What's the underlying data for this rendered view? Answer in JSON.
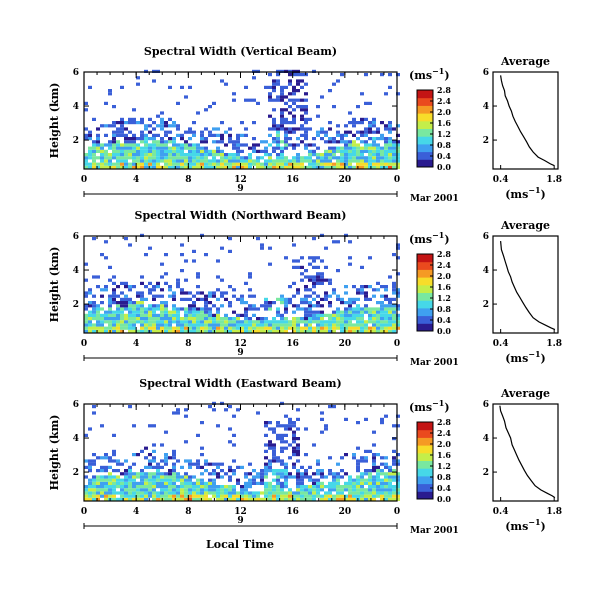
{
  "figure": {
    "bottom_xlabel": "Local Time",
    "colorscale": [
      "#2a1b8f",
      "#3a5fd8",
      "#3fa0f0",
      "#46d8e8",
      "#79e8a0",
      "#c4ee4a",
      "#f7dd2a",
      "#f59a24",
      "#ea4a1e",
      "#c41414"
    ]
  },
  "chart_data": [
    {
      "type": "heatmap",
      "title": "Spectral Width (Vertical Beam)",
      "ylabel": "Height (km)",
      "y_ticks": [
        "2",
        "4",
        "6"
      ],
      "x_ticks": [
        "0",
        "4",
        "8",
        "12",
        "16",
        "20",
        "0"
      ],
      "xlim": [
        0,
        24
      ],
      "ylim": [
        0.3,
        6.0
      ],
      "date_marker": "9",
      "date_label": "Mar 2001",
      "colorbar": {
        "unit": "(ms",
        "exponent": "−1",
        "unit_close": ")",
        "ticks": [
          "0.0",
          "0.4",
          "0.8",
          "1.2",
          "1.6",
          "2.0",
          "2.4",
          "2.8"
        ],
        "range": [
          0,
          2.8
        ]
      },
      "features": {
        "column_center_h": 15.5,
        "column_top_km": 6.0
      },
      "average": {
        "title": "Average",
        "xlabel": "(ms",
        "xlabel_exp": "−1",
        "xlabel_close": ")",
        "x_ticks": [
          "0.4",
          "1.8"
        ],
        "y_ticks": [
          "2",
          "4",
          "6"
        ],
        "xlim": [
          0.2,
          1.9
        ],
        "ylim": [
          0.3,
          6.0
        ],
        "profile": [
          [
            0.4,
            5.8
          ],
          [
            0.42,
            5.5
          ],
          [
            0.45,
            5.2
          ],
          [
            0.5,
            4.9
          ],
          [
            0.52,
            4.6
          ],
          [
            0.58,
            4.3
          ],
          [
            0.62,
            4.0
          ],
          [
            0.68,
            3.7
          ],
          [
            0.72,
            3.4
          ],
          [
            0.78,
            3.1
          ],
          [
            0.85,
            2.8
          ],
          [
            0.92,
            2.5
          ],
          [
            1.0,
            2.2
          ],
          [
            1.08,
            1.9
          ],
          [
            1.15,
            1.6
          ],
          [
            1.25,
            1.3
          ],
          [
            1.38,
            1.0
          ],
          [
            1.55,
            0.8
          ],
          [
            1.7,
            0.6
          ],
          [
            1.8,
            0.5
          ]
        ]
      }
    },
    {
      "type": "heatmap",
      "title": "Spectral Width (Northward Beam)",
      "ylabel": "Height (km)",
      "y_ticks": [
        "2",
        "4",
        "6"
      ],
      "x_ticks": [
        "0",
        "4",
        "8",
        "12",
        "16",
        "20",
        "0"
      ],
      "xlim": [
        0,
        24
      ],
      "ylim": [
        0.3,
        6.0
      ],
      "date_marker": "9",
      "date_label": "Mar 2001",
      "colorbar": {
        "unit": "(ms",
        "exponent": "−1",
        "unit_close": ")",
        "ticks": [
          "0.0",
          "0.4",
          "0.8",
          "1.2",
          "1.6",
          "2.0",
          "2.4",
          "2.8"
        ],
        "range": [
          0,
          2.8
        ]
      },
      "features": {
        "column_center_h": 17.5,
        "column_top_km": 4.8
      },
      "average": {
        "title": "Average",
        "xlabel": "(ms",
        "xlabel_exp": "−1",
        "xlabel_close": ")",
        "x_ticks": [
          "0.4",
          "1.8"
        ],
        "y_ticks": [
          "2",
          "4",
          "6"
        ],
        "xlim": [
          0.2,
          1.9
        ],
        "ylim": [
          0.3,
          6.0
        ],
        "profile": [
          [
            0.4,
            5.7
          ],
          [
            0.42,
            5.2
          ],
          [
            0.48,
            4.8
          ],
          [
            0.52,
            4.5
          ],
          [
            0.56,
            4.2
          ],
          [
            0.6,
            3.9
          ],
          [
            0.66,
            3.6
          ],
          [
            0.7,
            3.3
          ],
          [
            0.76,
            3.0
          ],
          [
            0.82,
            2.7
          ],
          [
            0.9,
            2.4
          ],
          [
            0.98,
            2.1
          ],
          [
            1.06,
            1.8
          ],
          [
            1.15,
            1.5
          ],
          [
            1.25,
            1.2
          ],
          [
            1.4,
            0.95
          ],
          [
            1.58,
            0.75
          ],
          [
            1.72,
            0.6
          ],
          [
            1.82,
            0.5
          ]
        ]
      }
    },
    {
      "type": "heatmap",
      "title": "Spectral Width (Eastward Beam)",
      "ylabel": "Height (km)",
      "y_ticks": [
        "2",
        "4",
        "6"
      ],
      "x_ticks": [
        "0",
        "4",
        "8",
        "12",
        "16",
        "20",
        "0"
      ],
      "xlim": [
        0,
        24
      ],
      "ylim": [
        0.3,
        6.0
      ],
      "date_marker": "9",
      "date_label": "Mar 2001",
      "colorbar": {
        "unit": "(ms",
        "exponent": "−1",
        "unit_close": ")",
        "ticks": [
          "0.0",
          "0.4",
          "0.8",
          "1.2",
          "1.6",
          "2.0",
          "2.4",
          "2.8"
        ],
        "range": [
          0,
          2.8
        ]
      },
      "features": {
        "column_center_h": 15.0,
        "column_top_km": 5.0
      },
      "average": {
        "title": "Average",
        "xlabel": "(ms",
        "xlabel_exp": "−1",
        "xlabel_close": ")",
        "x_ticks": [
          "0.4",
          "1.8"
        ],
        "y_ticks": [
          "2",
          "4",
          "6"
        ],
        "xlim": [
          0.2,
          1.9
        ],
        "ylim": [
          0.3,
          6.0
        ],
        "profile": [
          [
            0.38,
            5.9
          ],
          [
            0.4,
            5.6
          ],
          [
            0.45,
            5.3
          ],
          [
            0.5,
            5.0
          ],
          [
            0.54,
            4.6
          ],
          [
            0.6,
            4.3
          ],
          [
            0.66,
            4.0
          ],
          [
            0.7,
            3.6
          ],
          [
            0.76,
            3.3
          ],
          [
            0.82,
            3.0
          ],
          [
            0.88,
            2.7
          ],
          [
            0.95,
            2.4
          ],
          [
            1.02,
            2.1
          ],
          [
            1.1,
            1.8
          ],
          [
            1.2,
            1.5
          ],
          [
            1.3,
            1.2
          ],
          [
            1.45,
            0.95
          ],
          [
            1.62,
            0.75
          ],
          [
            1.75,
            0.6
          ],
          [
            1.82,
            0.5
          ]
        ]
      }
    }
  ]
}
